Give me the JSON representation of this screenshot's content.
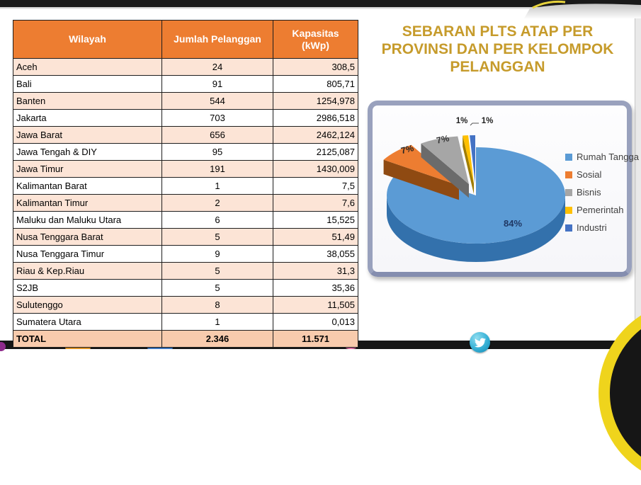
{
  "slide": {
    "background": "#FFFFFF",
    "top_bar_color": "#1A1A1A",
    "accent_yellow": "#EFD41C",
    "title": {
      "lines": [
        "SEBARAN PLTS ATAP PER",
        "PROVINSI DAN PER KELOMPOK",
        "PELANGGAN"
      ],
      "color": "#C69B2B"
    }
  },
  "table": {
    "headers": [
      "Wilayah",
      "Jumlah Pelanggan",
      "Kapasitas (kWp)"
    ],
    "header_bg": "#ED7D31",
    "alt_row_bg": "#FCE4D6",
    "total_row_bg": "#F8CBAD",
    "rows": [
      [
        "Aceh",
        "24",
        "308,5"
      ],
      [
        "Bali",
        "91",
        "805,71"
      ],
      [
        "Banten",
        "544",
        "1254,978"
      ],
      [
        "Jakarta",
        "703",
        "2986,518"
      ],
      [
        "Jawa Barat",
        "656",
        "2462,124"
      ],
      [
        "Jawa Tengah & DIY",
        "95",
        "2125,087"
      ],
      [
        "Jawa Timur",
        "191",
        "1430,009"
      ],
      [
        "Kalimantan Barat",
        "1",
        "7,5"
      ],
      [
        "Kalimantan Timur",
        "2",
        "7,6"
      ],
      [
        "Maluku dan Maluku Utara",
        "6",
        "15,525"
      ],
      [
        "Nusa Tenggara Barat",
        "5",
        "51,49"
      ],
      [
        "Nusa Tenggara Timur",
        "9",
        "38,055"
      ],
      [
        "Riau & Kep.Riau",
        "5",
        "31,3"
      ],
      [
        "S2JB",
        "5",
        "35,36"
      ],
      [
        "Sulutenggo",
        "8",
        "11,505"
      ],
      [
        "Sumatera Utara",
        "1",
        "0,013"
      ]
    ],
    "total": [
      "TOTAL",
      "2.346",
      "11.571"
    ]
  },
  "chart_data": {
    "type": "pie",
    "style": "3d-exploded",
    "title": "SEBARAN PLTS ATAP PER PROVINSI DAN PER KELOMPOK PELANGGAN",
    "labels": [
      "Rumah Tangga",
      "Sosial",
      "Bisnis",
      "Pemerintah",
      "Industri"
    ],
    "values_percent": [
      84,
      7,
      7,
      1,
      1
    ],
    "data_labels": [
      "84%",
      "7%",
      "7%",
      "1%",
      "1%"
    ],
    "colors": [
      "#5B9BD5",
      "#ED7D31",
      "#A6A6A6",
      "#FFC000",
      "#4472C4"
    ],
    "legend_position": "right"
  },
  "footer": {
    "twitter_icon": "twitter-bird"
  }
}
